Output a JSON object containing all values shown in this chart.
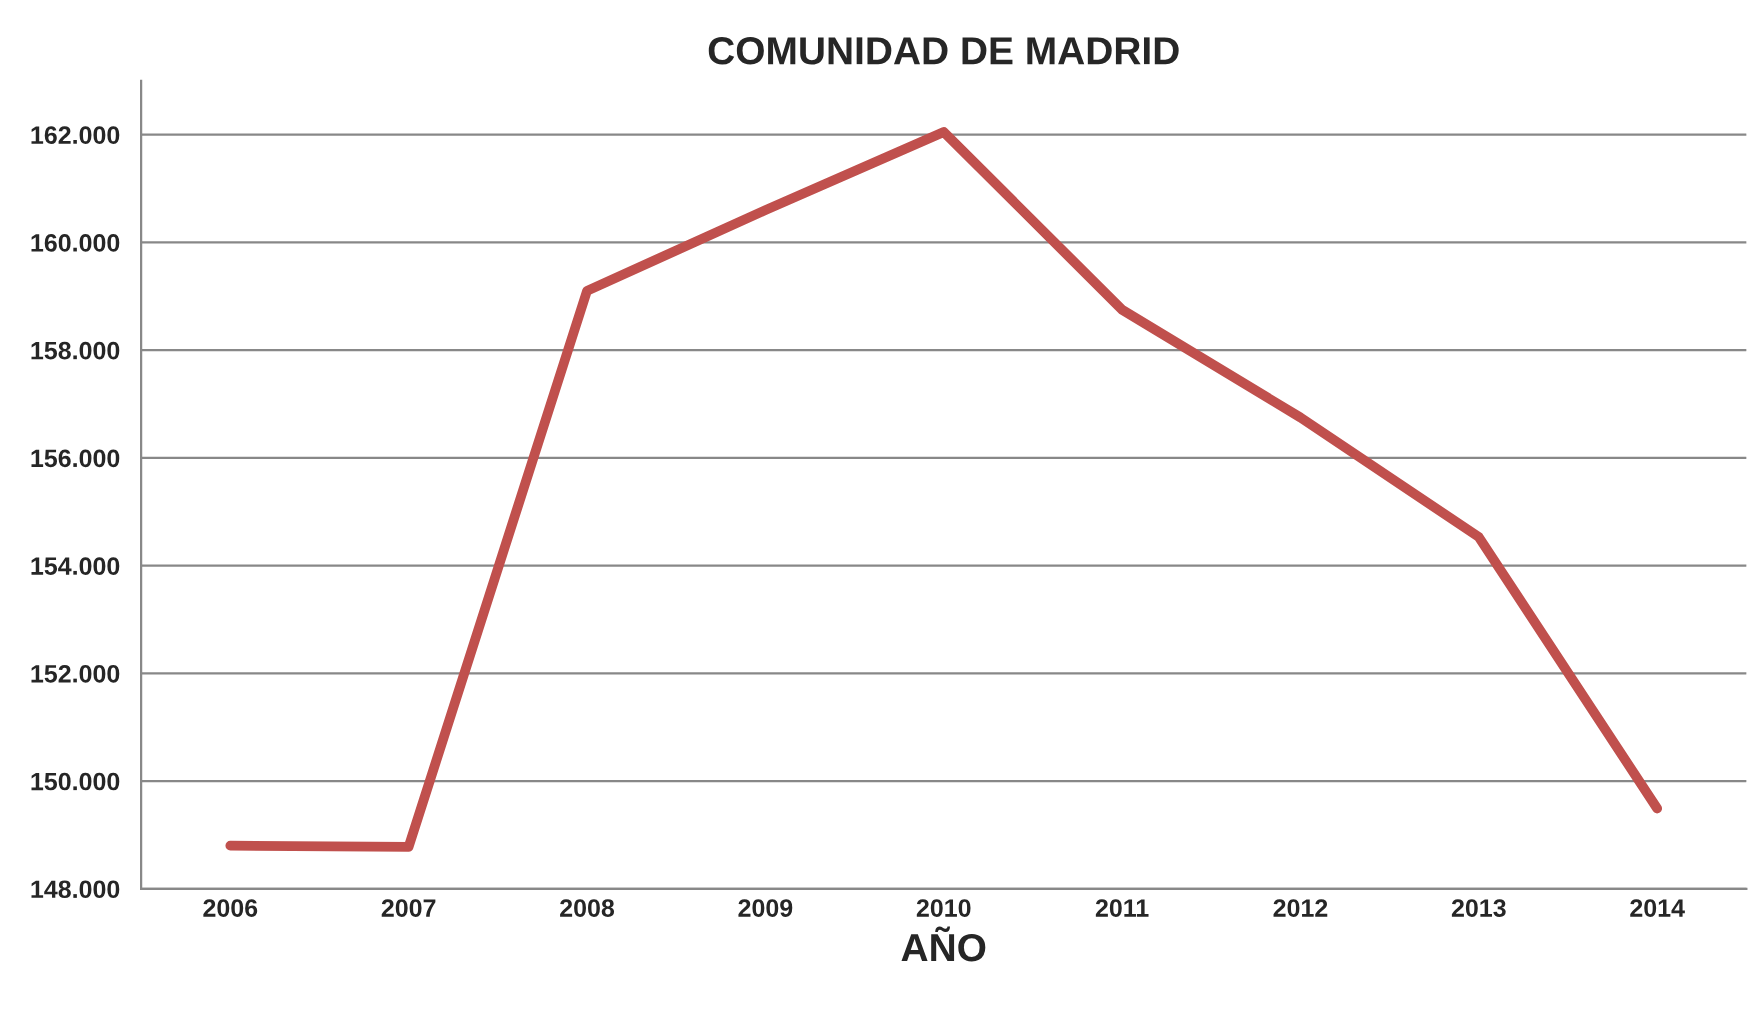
{
  "chart_data": {
    "type": "line",
    "title": "COMUNIDAD DE MADRID",
    "xlabel": "AÑO",
    "categories": [
      "2006",
      "2007",
      "2008",
      "2009",
      "2010",
      "2011",
      "2012",
      "2013",
      "2014"
    ],
    "series": [
      {
        "color": "#c0504d",
        "values": [
          148800,
          148780,
          159100,
          160600,
          162050,
          158750,
          156750,
          154530,
          149490
        ]
      }
    ],
    "ylim": [
      148000,
      163000
    ],
    "yticks": [
      {
        "value": 148000,
        "label": "148.000"
      },
      {
        "value": 150000,
        "label": "150.000"
      },
      {
        "value": 152000,
        "label": "152.000"
      },
      {
        "value": 154000,
        "label": "154.000"
      },
      {
        "value": 156000,
        "label": "156.000"
      },
      {
        "value": 158000,
        "label": "158.000"
      },
      {
        "value": 160000,
        "label": "160.000"
      },
      {
        "value": 162000,
        "label": "162.000"
      }
    ],
    "grid": "y",
    "legend": false,
    "marker": "none",
    "line_style": "solid"
  }
}
